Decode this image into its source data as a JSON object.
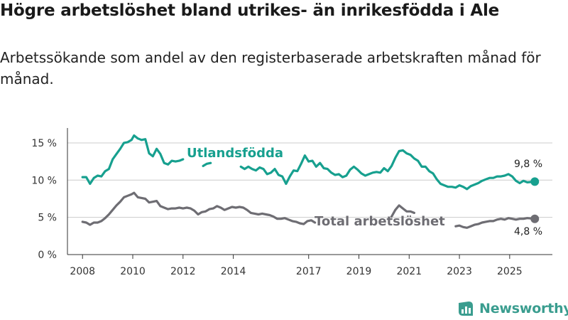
{
  "title": "Högre arbetslöshet bland utrikes- än inrikesfödda i Ale",
  "subtitle": "Arbetssökande som andel av den registerbaserade arbetskraften månad för månad.",
  "brand": {
    "name": "Newsworthy",
    "color": "#3a9d8f"
  },
  "colors": {
    "foreign": "#17a08f",
    "total": "#6e6d73",
    "axis": "#333333",
    "grid": "#cccccc"
  },
  "chart_data": {
    "type": "line",
    "title": "Högre arbetslöshet bland utrikes- än inrikesfödda i Ale",
    "xlabel": "",
    "ylabel": "",
    "xlim": [
      2007.4,
      2026.7
    ],
    "ylim": [
      0,
      17
    ],
    "y_ticks": [
      0,
      5,
      10,
      15
    ],
    "y_tick_labels": [
      "0 %",
      "5 %",
      "10 %",
      "15 %"
    ],
    "x_ticks": [
      2008,
      2010,
      2012,
      2014,
      2017,
      2019,
      2021,
      2023,
      2025
    ],
    "x_tick_labels": [
      "2008",
      "2010",
      "2012",
      "2014",
      "2017",
      "2019",
      "2021",
      "2023",
      "2025"
    ],
    "series": [
      {
        "name": "Utlandsfödda",
        "end_label": "9,8 %",
        "points": [
          [
            2008.0,
            10.4
          ],
          [
            2008.15,
            10.4
          ],
          [
            2008.3,
            9.5
          ],
          [
            2008.45,
            10.3
          ],
          [
            2008.6,
            10.6
          ],
          [
            2008.75,
            10.5
          ],
          [
            2008.9,
            11.2
          ],
          [
            2009.05,
            11.5
          ],
          [
            2009.2,
            12.8
          ],
          [
            2009.35,
            13.5
          ],
          [
            2009.5,
            14.2
          ],
          [
            2009.65,
            15.0
          ],
          [
            2009.8,
            15.1
          ],
          [
            2009.95,
            15.4
          ],
          [
            2010.05,
            16.0
          ],
          [
            2010.2,
            15.6
          ],
          [
            2010.35,
            15.4
          ],
          [
            2010.5,
            15.5
          ],
          [
            2010.65,
            13.6
          ],
          [
            2010.8,
            13.2
          ],
          [
            2010.95,
            14.2
          ],
          [
            2011.1,
            13.5
          ],
          [
            2011.25,
            12.3
          ],
          [
            2011.4,
            12.1
          ],
          [
            2011.55,
            12.6
          ],
          [
            2011.7,
            12.5
          ],
          [
            2011.85,
            12.6
          ],
          [
            2012.0,
            12.8
          ]
        ],
        "points_b": [
          [
            2012.8,
            11.9
          ],
          [
            2012.95,
            12.2
          ],
          [
            2013.1,
            12.3
          ]
        ],
        "points_c": [
          [
            2014.3,
            11.8
          ],
          [
            2014.45,
            11.5
          ],
          [
            2014.6,
            11.8
          ],
          [
            2014.75,
            11.5
          ],
          [
            2014.9,
            11.3
          ],
          [
            2015.05,
            11.7
          ],
          [
            2015.2,
            11.5
          ],
          [
            2015.35,
            10.8
          ],
          [
            2015.5,
            11.0
          ],
          [
            2015.65,
            11.5
          ],
          [
            2015.8,
            10.7
          ],
          [
            2015.95,
            10.5
          ],
          [
            2016.1,
            9.5
          ],
          [
            2016.25,
            10.5
          ],
          [
            2016.4,
            11.3
          ],
          [
            2016.55,
            11.2
          ],
          [
            2016.7,
            12.2
          ],
          [
            2016.85,
            13.3
          ],
          [
            2017.0,
            12.5
          ],
          [
            2017.15,
            12.6
          ],
          [
            2017.3,
            11.8
          ],
          [
            2017.45,
            12.3
          ],
          [
            2017.6,
            11.6
          ],
          [
            2017.75,
            11.5
          ],
          [
            2017.9,
            11.0
          ],
          [
            2018.05,
            10.7
          ],
          [
            2018.2,
            10.8
          ],
          [
            2018.35,
            10.4
          ],
          [
            2018.5,
            10.6
          ],
          [
            2018.65,
            11.4
          ],
          [
            2018.8,
            11.8
          ],
          [
            2018.95,
            11.4
          ],
          [
            2019.1,
            10.9
          ],
          [
            2019.25,
            10.6
          ],
          [
            2019.4,
            10.8
          ],
          [
            2019.55,
            11.0
          ],
          [
            2019.7,
            11.1
          ],
          [
            2019.85,
            11.0
          ],
          [
            2020.0,
            11.6
          ],
          [
            2020.15,
            11.2
          ],
          [
            2020.3,
            11.9
          ],
          [
            2020.45,
            13.0
          ],
          [
            2020.6,
            13.9
          ],
          [
            2020.75,
            14.0
          ],
          [
            2020.9,
            13.6
          ],
          [
            2021.05,
            13.4
          ],
          [
            2021.2,
            12.9
          ],
          [
            2021.35,
            12.6
          ],
          [
            2021.5,
            11.8
          ],
          [
            2021.65,
            11.8
          ],
          [
            2021.8,
            11.2
          ],
          [
            2021.95,
            10.9
          ],
          [
            2022.1,
            10.1
          ],
          [
            2022.25,
            9.5
          ],
          [
            2022.4,
            9.3
          ],
          [
            2022.55,
            9.1
          ],
          [
            2022.7,
            9.1
          ],
          [
            2022.85,
            9.0
          ],
          [
            2023.0,
            9.3
          ],
          [
            2023.15,
            9.1
          ],
          [
            2023.3,
            8.8
          ],
          [
            2023.45,
            9.2
          ],
          [
            2023.6,
            9.4
          ],
          [
            2023.75,
            9.6
          ],
          [
            2023.9,
            9.9
          ],
          [
            2024.05,
            10.1
          ],
          [
            2024.2,
            10.3
          ],
          [
            2024.35,
            10.3
          ],
          [
            2024.5,
            10.5
          ],
          [
            2024.65,
            10.5
          ],
          [
            2024.8,
            10.6
          ],
          [
            2024.95,
            10.8
          ],
          [
            2025.1,
            10.5
          ],
          [
            2025.25,
            9.9
          ],
          [
            2025.4,
            9.6
          ],
          [
            2025.55,
            9.9
          ],
          [
            2025.7,
            9.7
          ],
          [
            2026.0,
            9.8
          ]
        ]
      },
      {
        "name": "Total arbetslöshet",
        "end_label": "4,8 %",
        "points": [
          [
            2008.0,
            4.4
          ],
          [
            2008.15,
            4.3
          ],
          [
            2008.3,
            4.0
          ],
          [
            2008.45,
            4.3
          ],
          [
            2008.6,
            4.3
          ],
          [
            2008.75,
            4.5
          ],
          [
            2008.9,
            4.9
          ],
          [
            2009.05,
            5.4
          ],
          [
            2009.2,
            6.0
          ],
          [
            2009.35,
            6.6
          ],
          [
            2009.5,
            7.1
          ],
          [
            2009.65,
            7.7
          ],
          [
            2009.8,
            7.9
          ],
          [
            2009.95,
            8.1
          ],
          [
            2010.05,
            8.3
          ],
          [
            2010.2,
            7.7
          ],
          [
            2010.35,
            7.6
          ],
          [
            2010.5,
            7.5
          ],
          [
            2010.65,
            7.0
          ],
          [
            2010.8,
            7.1
          ],
          [
            2010.95,
            7.2
          ],
          [
            2011.1,
            6.5
          ],
          [
            2011.25,
            6.3
          ],
          [
            2011.4,
            6.1
          ],
          [
            2011.55,
            6.2
          ],
          [
            2011.7,
            6.2
          ],
          [
            2011.85,
            6.3
          ],
          [
            2012.0,
            6.2
          ],
          [
            2012.15,
            6.3
          ],
          [
            2012.3,
            6.2
          ],
          [
            2012.45,
            5.9
          ],
          [
            2012.6,
            5.4
          ],
          [
            2012.75,
            5.7
          ],
          [
            2012.9,
            5.8
          ],
          [
            2013.05,
            6.1
          ],
          [
            2013.2,
            6.2
          ],
          [
            2013.35,
            6.5
          ],
          [
            2013.5,
            6.3
          ],
          [
            2013.65,
            6.0
          ],
          [
            2013.8,
            6.2
          ],
          [
            2013.95,
            6.4
          ],
          [
            2014.1,
            6.3
          ],
          [
            2014.25,
            6.4
          ],
          [
            2014.4,
            6.3
          ],
          [
            2014.55,
            6.0
          ],
          [
            2014.7,
            5.6
          ],
          [
            2014.85,
            5.5
          ],
          [
            2015.0,
            5.4
          ],
          [
            2015.15,
            5.5
          ],
          [
            2015.3,
            5.4
          ],
          [
            2015.45,
            5.3
          ],
          [
            2015.6,
            5.1
          ],
          [
            2015.75,
            4.8
          ],
          [
            2015.9,
            4.8
          ],
          [
            2016.05,
            4.9
          ],
          [
            2016.2,
            4.7
          ],
          [
            2016.35,
            4.5
          ],
          [
            2016.5,
            4.4
          ],
          [
            2016.65,
            4.2
          ],
          [
            2016.8,
            4.1
          ],
          [
            2016.95,
            4.5
          ],
          [
            2017.1,
            4.6
          ],
          [
            2017.25,
            4.3
          ]
        ],
        "points_b": [
          [
            2020.3,
            5.1
          ],
          [
            2020.45,
            6.0
          ],
          [
            2020.6,
            6.6
          ],
          [
            2020.75,
            6.2
          ],
          [
            2020.9,
            5.8
          ],
          [
            2021.05,
            5.8
          ],
          [
            2021.2,
            5.6
          ]
        ],
        "points_c": [
          [
            2022.85,
            3.8
          ],
          [
            2023.0,
            3.9
          ],
          [
            2023.15,
            3.7
          ],
          [
            2023.3,
            3.6
          ],
          [
            2023.45,
            3.8
          ],
          [
            2023.6,
            4.0
          ],
          [
            2023.75,
            4.1
          ],
          [
            2023.9,
            4.3
          ],
          [
            2024.05,
            4.4
          ],
          [
            2024.2,
            4.5
          ],
          [
            2024.35,
            4.5
          ],
          [
            2024.5,
            4.7
          ],
          [
            2024.65,
            4.8
          ],
          [
            2024.8,
            4.7
          ],
          [
            2024.95,
            4.9
          ],
          [
            2025.1,
            4.8
          ],
          [
            2025.25,
            4.7
          ],
          [
            2025.4,
            4.8
          ],
          [
            2025.55,
            4.8
          ],
          [
            2025.7,
            4.9
          ],
          [
            2026.0,
            4.8
          ]
        ]
      }
    ]
  }
}
